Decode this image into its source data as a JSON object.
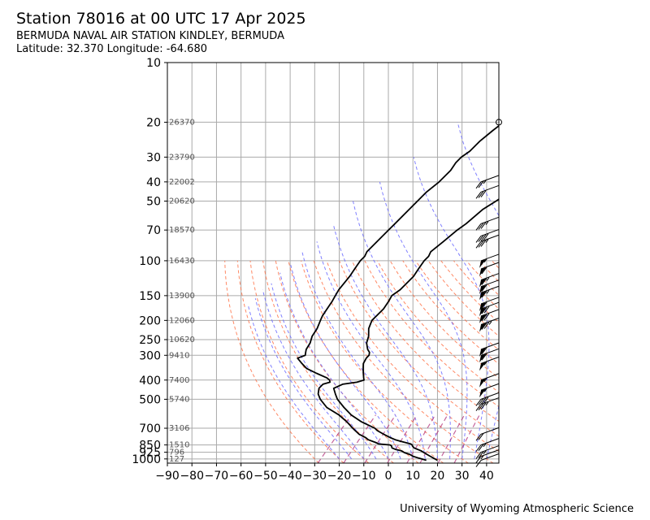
{
  "header": {
    "title": "Station 78016 at 00 UTC 17 Apr 2025",
    "station_name": "BERMUDA NAVAL AIR STATION KINDLEY, BERMUDA",
    "coords": "Latitude: 32.370 Longitude: -64.680"
  },
  "footer": {
    "credit": "University of Wyoming Atmospheric Science"
  },
  "colors": {
    "temperature": "#000000",
    "dewpoint": "#000000",
    "dry_adiabat": "#ff6a3d",
    "moist_adiabat": "#6a6aff",
    "mixing_ratio": "#b0307a",
    "grid": "#aaaaaa"
  },
  "chart_data": {
    "type": "line",
    "subtype": "skew-T log-P diagram",
    "title": "Station 78016 at 00 UTC 17 Apr 2025",
    "xlabel": "",
    "ylabel": "",
    "x_scale": "linear, skewed",
    "y_scale": "log (pressure, inverted)",
    "xlim": [
      -90,
      45
    ],
    "ylim": [
      1050,
      10
    ],
    "grid": true,
    "x_ticks": [
      -90,
      -80,
      -70,
      -60,
      -50,
      -40,
      -30,
      -20,
      -10,
      0,
      10,
      20,
      30,
      40
    ],
    "y_ticks": [
      10,
      20,
      30,
      40,
      50,
      70,
      100,
      150,
      200,
      250,
      300,
      400,
      500,
      700,
      850,
      925,
      1000
    ],
    "height_labels": [
      {
        "p": 20,
        "label": "26370"
      },
      {
        "p": 30,
        "label": "23790"
      },
      {
        "p": 40,
        "label": "22002"
      },
      {
        "p": 50,
        "label": "20620"
      },
      {
        "p": 70,
        "label": "18570"
      },
      {
        "p": 100,
        "label": "16430"
      },
      {
        "p": 150,
        "label": "13900"
      },
      {
        "p": 200,
        "label": "12060"
      },
      {
        "p": 250,
        "label": "10620"
      },
      {
        "p": 300,
        "label": "9410"
      },
      {
        "p": 400,
        "label": "7400"
      },
      {
        "p": 500,
        "label": "5740"
      },
      {
        "p": 700,
        "label": "3106"
      },
      {
        "p": 850,
        "label": "1510"
      },
      {
        "p": 925,
        "label": "796"
      },
      {
        "p": 1000,
        "label": "127"
      }
    ],
    "series": [
      {
        "name": "",
        "points": [
          [
            1016,
            20.5
          ],
          [
            990,
            18
          ],
          [
            970,
            16
          ],
          [
            950,
            14
          ],
          [
            930,
            12
          ],
          [
            910,
            10
          ],
          [
            895,
            8
          ],
          [
            880,
            6
          ],
          [
            860,
            4.5
          ],
          [
            850,
            4
          ],
          [
            840,
            3
          ],
          [
            825,
            0
          ],
          [
            815,
            -2
          ],
          [
            800,
            -5
          ],
          [
            780,
            -8
          ],
          [
            750,
            -12
          ],
          [
            720,
            -16
          ],
          [
            700,
            -18
          ],
          [
            650,
            -26
          ],
          [
            600,
            -33
          ],
          [
            550,
            -39
          ],
          [
            500,
            -45
          ],
          [
            470,
            -48
          ],
          [
            440,
            -51
          ],
          [
            420,
            -49
          ],
          [
            410,
            -44
          ],
          [
            400,
            -42
          ],
          [
            390,
            -43
          ],
          [
            370,
            -45
          ],
          [
            350,
            -47
          ],
          [
            330,
            -49
          ],
          [
            310,
            -50
          ],
          [
            300,
            -50
          ],
          [
            290,
            -51
          ],
          [
            280,
            -53
          ],
          [
            260,
            -56
          ],
          [
            240,
            -58
          ],
          [
            220,
            -61
          ],
          [
            210,
            -62
          ],
          [
            200,
            -63
          ],
          [
            190,
            -63
          ],
          [
            175,
            -63
          ],
          [
            160,
            -64
          ],
          [
            150,
            -65
          ],
          [
            140,
            -64
          ],
          [
            120,
            -64
          ],
          [
            110,
            -65
          ],
          [
            100,
            -66
          ],
          [
            95,
            -66
          ],
          [
            90,
            -67
          ],
          [
            80,
            -66
          ],
          [
            70,
            -65
          ],
          [
            65,
            -64
          ],
          [
            55,
            -63
          ],
          [
            50,
            -61
          ],
          [
            45,
            -59
          ],
          [
            40,
            -57
          ],
          [
            35,
            -55
          ],
          [
            32,
            -54
          ],
          [
            30,
            -54
          ],
          [
            28,
            -55
          ],
          [
            25,
            -56
          ],
          [
            22,
            -57
          ],
          [
            20,
            -58
          ],
          [
            18,
            -59
          ]
        ]
      },
      {
        "name": "",
        "points": [
          [
            1016,
            16
          ],
          [
            990,
            12
          ],
          [
            970,
            9
          ],
          [
            950,
            7
          ],
          [
            930,
            4
          ],
          [
            910,
            2
          ],
          [
            895,
            -1
          ],
          [
            880,
            -3
          ],
          [
            860,
            -4
          ],
          [
            850,
            -5
          ],
          [
            840,
            -10
          ],
          [
            825,
            -12
          ],
          [
            800,
            -16
          ],
          [
            780,
            -18
          ],
          [
            750,
            -22
          ],
          [
            720,
            -25
          ],
          [
            700,
            -27
          ],
          [
            650,
            -32
          ],
          [
            600,
            -38
          ],
          [
            550,
            -46
          ],
          [
            500,
            -52
          ],
          [
            470,
            -55
          ],
          [
            440,
            -57
          ],
          [
            420,
            -57
          ],
          [
            410,
            -55
          ],
          [
            400,
            -56
          ],
          [
            390,
            -58
          ],
          [
            370,
            -64
          ],
          [
            350,
            -70
          ],
          [
            330,
            -74
          ],
          [
            310,
            -78
          ],
          [
            300,
            -76
          ],
          [
            290,
            -77
          ],
          [
            280,
            -78
          ],
          [
            260,
            -79
          ],
          [
            240,
            -81
          ],
          [
            220,
            -82
          ],
          [
            200,
            -84
          ],
          [
            190,
            -85
          ],
          [
            175,
            -86
          ],
          [
            160,
            -87
          ],
          [
            150,
            -88
          ],
          [
            140,
            -89
          ],
          [
            120,
            -90
          ],
          [
            110,
            -91
          ],
          [
            100,
            -92
          ],
          [
            95,
            -92
          ],
          [
            90,
            -93
          ],
          [
            80,
            -93
          ],
          [
            70,
            -93
          ],
          [
            65,
            -93
          ],
          [
            55,
            -93
          ],
          [
            50,
            -93
          ],
          [
            45,
            -93
          ],
          [
            40,
            -92
          ],
          [
            35,
            -92
          ],
          [
            32,
            -93
          ],
          [
            30,
            -93
          ],
          [
            28,
            -92
          ],
          [
            25,
            -92
          ],
          [
            22,
            -91
          ],
          [
            20,
            -90
          ],
          [
            18,
            -90
          ]
        ]
      }
    ],
    "wind_barbs": [
      {
        "p": 20,
        "speed_kt": 0
      },
      {
        "p": 40,
        "speed_kt": 25
      },
      {
        "p": 45,
        "speed_kt": 30
      },
      {
        "p": 65,
        "speed_kt": 35
      },
      {
        "p": 75,
        "speed_kt": 40
      },
      {
        "p": 80,
        "speed_kt": 35
      },
      {
        "p": 100,
        "speed_kt": 55
      },
      {
        "p": 110,
        "speed_kt": 60
      },
      {
        "p": 125,
        "speed_kt": 65
      },
      {
        "p": 135,
        "speed_kt": 60
      },
      {
        "p": 145,
        "speed_kt": 65
      },
      {
        "p": 165,
        "speed_kt": 60
      },
      {
        "p": 175,
        "speed_kt": 70
      },
      {
        "p": 190,
        "speed_kt": 70
      },
      {
        "p": 210,
        "speed_kt": 75
      },
      {
        "p": 280,
        "speed_kt": 60
      },
      {
        "p": 300,
        "speed_kt": 60
      },
      {
        "p": 330,
        "speed_kt": 55
      },
      {
        "p": 400,
        "speed_kt": 55
      },
      {
        "p": 450,
        "speed_kt": 55
      },
      {
        "p": 500,
        "speed_kt": 40
      },
      {
        "p": 530,
        "speed_kt": 35
      },
      {
        "p": 750,
        "speed_kt": 20
      },
      {
        "p": 850,
        "speed_kt": 25
      },
      {
        "p": 925,
        "speed_kt": 25
      },
      {
        "p": 970,
        "speed_kt": 15
      },
      {
        "p": 1016,
        "speed_kt": 10
      }
    ]
  }
}
